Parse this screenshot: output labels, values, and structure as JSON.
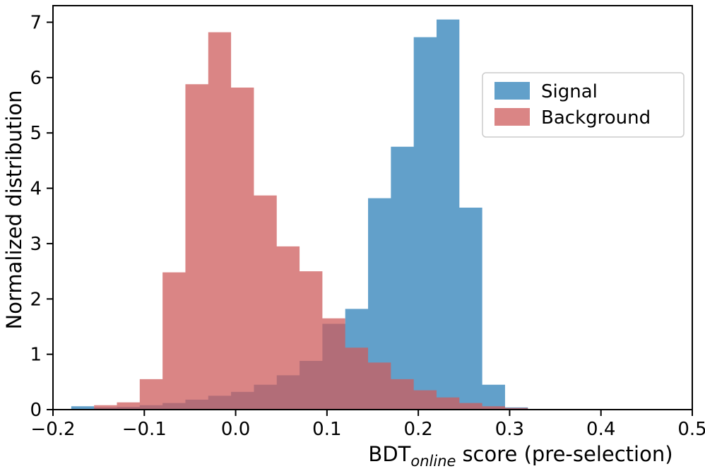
{
  "figure": {
    "background": "#ffffff",
    "frame_color": "#000000"
  },
  "chart_data": {
    "type": "bar",
    "subtype": "overlaid-histograms",
    "title": "",
    "xlabel": {
      "prefix": "BDT",
      "subscript": "online",
      "suffix": "score (pre-selection)"
    },
    "ylabel": "Normalized distribution",
    "xlim": [
      -0.2,
      0.5
    ],
    "ylim": [
      0,
      7.3
    ],
    "grid": false,
    "xticks": [
      {
        "v": -0.2,
        "label": "−0.2"
      },
      {
        "v": -0.1,
        "label": "−0.1"
      },
      {
        "v": 0.0,
        "label": "0.0"
      },
      {
        "v": 0.1,
        "label": "0.1"
      },
      {
        "v": 0.2,
        "label": "0.2"
      },
      {
        "v": 0.3,
        "label": "0.3"
      },
      {
        "v": 0.4,
        "label": "0.4"
      },
      {
        "v": 0.5,
        "label": "0.5"
      }
    ],
    "yticks": [
      {
        "v": 0,
        "label": "0"
      },
      {
        "v": 1,
        "label": "1"
      },
      {
        "v": 2,
        "label": "2"
      },
      {
        "v": 3,
        "label": "3"
      },
      {
        "v": 4,
        "label": "4"
      },
      {
        "v": 5,
        "label": "5"
      },
      {
        "v": 6,
        "label": "6"
      },
      {
        "v": 7,
        "label": "7"
      }
    ],
    "legend": {
      "position": "upper right",
      "border_color": "#cccccc",
      "background": "#ffffff",
      "entries": [
        {
          "label": "Signal",
          "series": "signal"
        },
        {
          "label": "Background",
          "series": "background"
        }
      ]
    },
    "series": [
      {
        "id": "signal",
        "name": "Signal",
        "color": "#1f77b4",
        "opacity": 0.7,
        "bin_start": -0.18,
        "bin_width": 0.025,
        "values": [
          0.06,
          0.04,
          0.05,
          0.08,
          0.12,
          0.18,
          0.25,
          0.32,
          0.45,
          0.62,
          0.88,
          1.55,
          1.82,
          3.82,
          4.75,
          6.73,
          7.05,
          3.65,
          0.45,
          0.04
        ]
      },
      {
        "id": "background",
        "name": "Background",
        "color": "#cd5c5c",
        "opacity": 0.75,
        "bin_start": -0.155,
        "bin_width": 0.025,
        "values": [
          0.08,
          0.13,
          0.55,
          2.48,
          5.88,
          6.82,
          5.82,
          3.87,
          2.95,
          2.5,
          1.65,
          1.12,
          0.85,
          0.55,
          0.35,
          0.22,
          0.12,
          0.06,
          0.03
        ]
      }
    ]
  }
}
